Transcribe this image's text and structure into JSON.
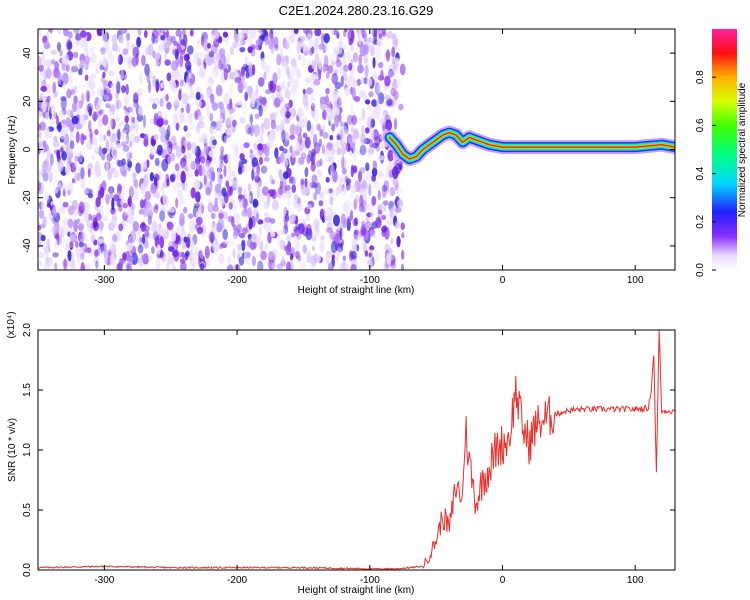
{
  "title": "C2E1.2024.280.23.16.G29",
  "chart_data": [
    {
      "type": "heatmap",
      "xlabel": "Height of straight line (km)",
      "ylabel": "Frequency (Hz)",
      "xlim": [
        -350,
        130
      ],
      "ylim": [
        -50,
        50
      ],
      "x_ticks": [
        -300,
        -200,
        -100,
        0,
        100
      ],
      "y_ticks": [
        -40,
        -20,
        0,
        20,
        40
      ],
      "colorbar": {
        "label": "Normalized spectral amplitude",
        "range": [
          0,
          1
        ],
        "ticks": [
          "0.0",
          "0.2",
          "0.4",
          "0.6",
          "0.8"
        ]
      },
      "noise_region_x": [
        -350,
        -75
      ],
      "signal_trace": {
        "x": [
          -85,
          -80,
          -75,
          -70,
          -65,
          -60,
          -55,
          -50,
          -45,
          -40,
          -35,
          -30,
          -25,
          -20,
          -10,
          0,
          20,
          40,
          60,
          80,
          100,
          120,
          130
        ],
        "y": [
          5,
          2,
          -2,
          -4,
          -3,
          0,
          2,
          4,
          6,
          7,
          6,
          3,
          5,
          4,
          2,
          1,
          1,
          1,
          1,
          1,
          1,
          2,
          1
        ]
      },
      "grid": false
    },
    {
      "type": "line",
      "xlabel": "Height of straight line (km)",
      "ylabel": "SNR (10 * v/v)",
      "y_multiplier": "(x10⁴)",
      "xlim": [
        -350,
        130
      ],
      "ylim": [
        0,
        2.0
      ],
      "x_ticks": [
        -300,
        -200,
        -100,
        0,
        100
      ],
      "y_ticks": [
        "0.0",
        "0.5",
        "1.0",
        "1.5",
        "2.0"
      ],
      "series": [
        {
          "color": "#e8302c",
          "x": [
            -350,
            -300,
            -250,
            -200,
            -150,
            -100,
            -80,
            -60,
            -55,
            -50,
            -45,
            -40,
            -35,
            -30,
            -28,
            -25,
            -20,
            -15,
            -10,
            -5,
            0,
            5,
            10,
            15,
            20,
            25,
            30,
            40,
            50,
            60,
            80,
            100,
            110,
            112,
            114,
            116,
            118,
            120,
            125,
            130
          ],
          "y": [
            0.02,
            0.03,
            0.02,
            0.02,
            0.02,
            0.01,
            0.01,
            0.03,
            0.12,
            0.25,
            0.45,
            0.35,
            0.7,
            0.6,
            1.2,
            0.9,
            0.55,
            0.75,
            0.85,
            1.0,
            1.05,
            1.1,
            1.5,
            1.2,
            1.05,
            1.2,
            1.25,
            1.3,
            1.33,
            1.34,
            1.34,
            1.34,
            1.35,
            1.5,
            1.8,
            0.8,
            2.0,
            1.32,
            1.33,
            1.32
          ]
        }
      ],
      "grid": false
    }
  ]
}
